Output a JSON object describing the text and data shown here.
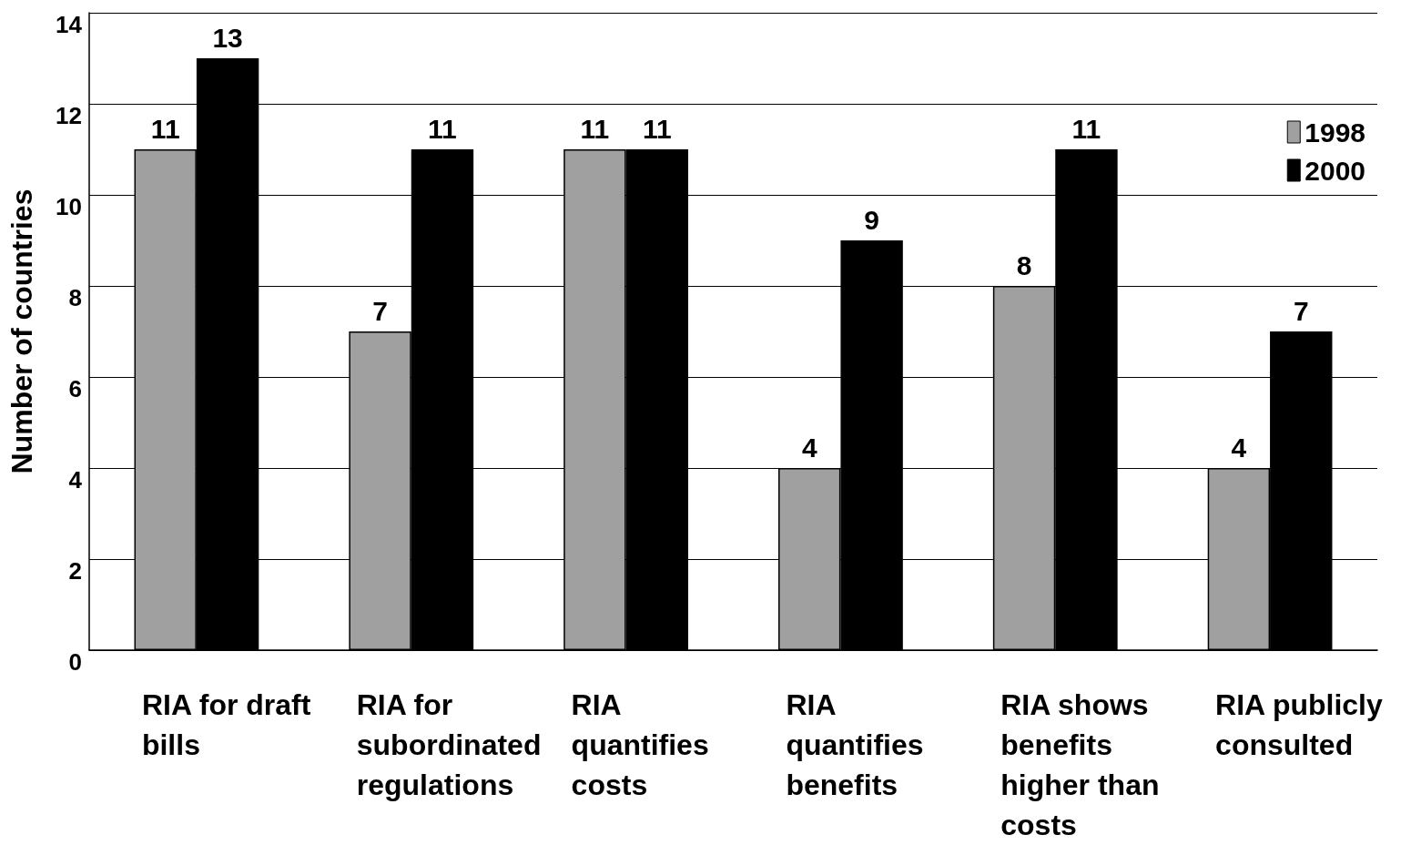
{
  "chart_data": {
    "type": "bar",
    "ylabel": "Number of countries",
    "categories": [
      "RIA for draft bills",
      "RIA for subordinated regulations",
      "RIA quantifies costs",
      "RIA quantifies benefits",
      "RIA shows benefits higher than costs",
      "RIA publicly consulted"
    ],
    "series": [
      {
        "name": "1998",
        "color": "#a0a0a0",
        "values": [
          11,
          7,
          11,
          4,
          8,
          4
        ]
      },
      {
        "name": "2000",
        "color": "#000000",
        "values": [
          13,
          11,
          11,
          9,
          11,
          7
        ]
      }
    ],
    "ylim": [
      0,
      14
    ],
    "yticks": [
      0,
      2,
      4,
      6,
      8,
      10,
      12,
      14
    ],
    "grid": "y",
    "legend": "top right",
    "data_labels": true
  }
}
